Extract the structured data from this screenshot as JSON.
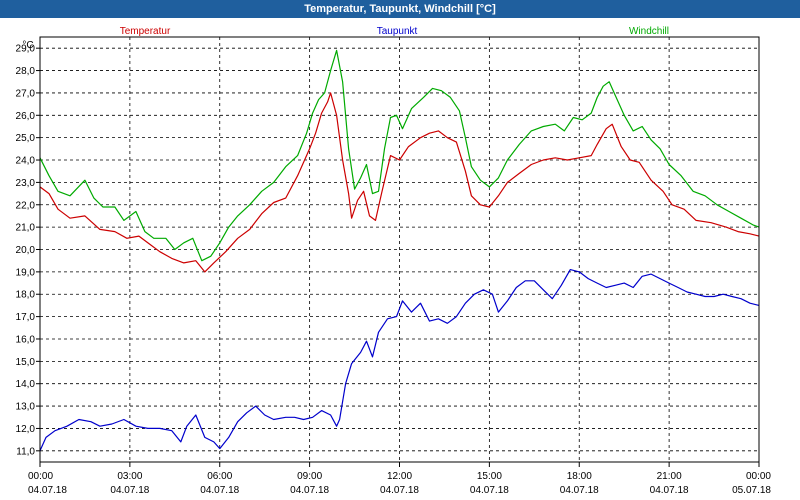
{
  "window": {
    "title": "Temperatur, Taupunkt, Windchill [°C]"
  },
  "chart_data": {
    "type": "line",
    "unit": "°C",
    "ylim": [
      10.5,
      29.5
    ],
    "yticks": [
      "11,0",
      "12,0",
      "13,0",
      "14,0",
      "15,0",
      "16,0",
      "17,0",
      "18,0",
      "19,0",
      "20,0",
      "21,0",
      "22,0",
      "23,0",
      "24,0",
      "25,0",
      "26,0",
      "27,0",
      "28,0",
      "29,0"
    ],
    "xlim": [
      0,
      24
    ],
    "xticks": [
      {
        "time": "00:00",
        "date": "04.07.18"
      },
      {
        "time": "03:00",
        "date": "04.07.18"
      },
      {
        "time": "06:00",
        "date": "04.07.18"
      },
      {
        "time": "09:00",
        "date": "04.07.18"
      },
      {
        "time": "12:00",
        "date": "04.07.18"
      },
      {
        "time": "15:00",
        "date": "04.07.18"
      },
      {
        "time": "18:00",
        "date": "04.07.18"
      },
      {
        "time": "21:00",
        "date": "04.07.18"
      },
      {
        "time": "00:00",
        "date": "05.07.18"
      }
    ],
    "grid": true,
    "series": [
      {
        "name": "Temperatur",
        "color": "#cc0000",
        "points": [
          [
            0,
            22.8
          ],
          [
            0.3,
            22.5
          ],
          [
            0.6,
            21.8
          ],
          [
            1,
            21.4
          ],
          [
            1.5,
            21.5
          ],
          [
            2,
            20.9
          ],
          [
            2.5,
            20.8
          ],
          [
            2.9,
            20.5
          ],
          [
            3.3,
            20.6
          ],
          [
            3.7,
            20.2
          ],
          [
            4,
            19.9
          ],
          [
            4.4,
            19.6
          ],
          [
            4.8,
            19.4
          ],
          [
            5.2,
            19.5
          ],
          [
            5.5,
            19.0
          ],
          [
            5.8,
            19.4
          ],
          [
            6.2,
            19.9
          ],
          [
            6.6,
            20.5
          ],
          [
            7,
            20.9
          ],
          [
            7.4,
            21.6
          ],
          [
            7.8,
            22.1
          ],
          [
            8.2,
            22.3
          ],
          [
            8.6,
            23.3
          ],
          [
            9,
            24.5
          ],
          [
            9.2,
            25.2
          ],
          [
            9.4,
            26.1
          ],
          [
            9.6,
            26.6
          ],
          [
            9.7,
            27.0
          ],
          [
            9.9,
            26.0
          ],
          [
            10.1,
            24.0
          ],
          [
            10.3,
            22.5
          ],
          [
            10.4,
            21.4
          ],
          [
            10.6,
            22.2
          ],
          [
            10.8,
            22.6
          ],
          [
            11,
            21.5
          ],
          [
            11.2,
            21.3
          ],
          [
            11.4,
            22.5
          ],
          [
            11.7,
            24.2
          ],
          [
            12,
            24.0
          ],
          [
            12.3,
            24.6
          ],
          [
            12.7,
            25.0
          ],
          [
            13,
            25.2
          ],
          [
            13.3,
            25.3
          ],
          [
            13.6,
            25.0
          ],
          [
            13.9,
            24.8
          ],
          [
            14.2,
            23.5
          ],
          [
            14.4,
            22.4
          ],
          [
            14.7,
            22.0
          ],
          [
            15,
            21.9
          ],
          [
            15.3,
            22.4
          ],
          [
            15.6,
            23.0
          ],
          [
            16,
            23.4
          ],
          [
            16.4,
            23.8
          ],
          [
            16.8,
            24.0
          ],
          [
            17.2,
            24.1
          ],
          [
            17.6,
            24.0
          ],
          [
            18,
            24.1
          ],
          [
            18.4,
            24.2
          ],
          [
            18.6,
            24.7
          ],
          [
            18.9,
            25.4
          ],
          [
            19.1,
            25.6
          ],
          [
            19.4,
            24.6
          ],
          [
            19.7,
            24.0
          ],
          [
            20,
            23.9
          ],
          [
            20.4,
            23.1
          ],
          [
            20.8,
            22.6
          ],
          [
            21.1,
            22.0
          ],
          [
            21.5,
            21.8
          ],
          [
            21.9,
            21.3
          ],
          [
            22.4,
            21.2
          ],
          [
            22.9,
            21.0
          ],
          [
            23.3,
            20.8
          ],
          [
            23.7,
            20.7
          ],
          [
            24,
            20.6
          ]
        ]
      },
      {
        "name": "Taupunkt",
        "color": "#0000cc",
        "points": [
          [
            0,
            11.0
          ],
          [
            0.2,
            11.6
          ],
          [
            0.5,
            11.9
          ],
          [
            0.9,
            12.1
          ],
          [
            1.3,
            12.4
          ],
          [
            1.7,
            12.3
          ],
          [
            2,
            12.1
          ],
          [
            2.4,
            12.2
          ],
          [
            2.8,
            12.4
          ],
          [
            3.2,
            12.1
          ],
          [
            3.6,
            12.0
          ],
          [
            4,
            12.0
          ],
          [
            4.4,
            11.9
          ],
          [
            4.7,
            11.4
          ],
          [
            4.9,
            12.1
          ],
          [
            5.2,
            12.6
          ],
          [
            5.5,
            11.6
          ],
          [
            5.8,
            11.4
          ],
          [
            6,
            11.1
          ],
          [
            6.3,
            11.6
          ],
          [
            6.6,
            12.3
          ],
          [
            6.9,
            12.7
          ],
          [
            7.2,
            13.0
          ],
          [
            7.5,
            12.6
          ],
          [
            7.8,
            12.4
          ],
          [
            8.2,
            12.5
          ],
          [
            8.5,
            12.5
          ],
          [
            8.8,
            12.4
          ],
          [
            9.1,
            12.5
          ],
          [
            9.4,
            12.8
          ],
          [
            9.7,
            12.6
          ],
          [
            9.9,
            12.1
          ],
          [
            10,
            12.4
          ],
          [
            10.2,
            14.0
          ],
          [
            10.4,
            14.9
          ],
          [
            10.7,
            15.4
          ],
          [
            10.9,
            15.9
          ],
          [
            11.1,
            15.2
          ],
          [
            11.3,
            16.3
          ],
          [
            11.6,
            16.9
          ],
          [
            11.9,
            17.0
          ],
          [
            12.1,
            17.7
          ],
          [
            12.4,
            17.2
          ],
          [
            12.7,
            17.6
          ],
          [
            13,
            16.8
          ],
          [
            13.3,
            16.9
          ],
          [
            13.6,
            16.7
          ],
          [
            13.9,
            17.0
          ],
          [
            14.2,
            17.6
          ],
          [
            14.5,
            18.0
          ],
          [
            14.8,
            18.2
          ],
          [
            15.1,
            18.0
          ],
          [
            15.3,
            17.2
          ],
          [
            15.6,
            17.7
          ],
          [
            15.9,
            18.3
          ],
          [
            16.2,
            18.6
          ],
          [
            16.5,
            18.6
          ],
          [
            16.8,
            18.2
          ],
          [
            17.1,
            17.8
          ],
          [
            17.4,
            18.4
          ],
          [
            17.7,
            19.1
          ],
          [
            18,
            19.0
          ],
          [
            18.3,
            18.7
          ],
          [
            18.6,
            18.5
          ],
          [
            18.9,
            18.3
          ],
          [
            19.2,
            18.4
          ],
          [
            19.5,
            18.5
          ],
          [
            19.8,
            18.3
          ],
          [
            20.1,
            18.8
          ],
          [
            20.4,
            18.9
          ],
          [
            20.7,
            18.7
          ],
          [
            21,
            18.5
          ],
          [
            21.3,
            18.3
          ],
          [
            21.6,
            18.1
          ],
          [
            21.9,
            18.0
          ],
          [
            22.2,
            17.9
          ],
          [
            22.5,
            17.9
          ],
          [
            22.8,
            18.0
          ],
          [
            23.1,
            17.9
          ],
          [
            23.4,
            17.8
          ],
          [
            23.7,
            17.6
          ],
          [
            24,
            17.5
          ]
        ]
      },
      {
        "name": "Windchill",
        "color": "#00aa00",
        "points": [
          [
            0,
            24.1
          ],
          [
            0.3,
            23.3
          ],
          [
            0.6,
            22.6
          ],
          [
            1,
            22.4
          ],
          [
            1.5,
            23.1
          ],
          [
            1.8,
            22.3
          ],
          [
            2.1,
            21.9
          ],
          [
            2.5,
            21.9
          ],
          [
            2.8,
            21.3
          ],
          [
            3.2,
            21.7
          ],
          [
            3.5,
            20.8
          ],
          [
            3.8,
            20.5
          ],
          [
            4.2,
            20.5
          ],
          [
            4.5,
            20.0
          ],
          [
            4.8,
            20.3
          ],
          [
            5.1,
            20.5
          ],
          [
            5.4,
            19.5
          ],
          [
            5.7,
            19.7
          ],
          [
            6,
            20.3
          ],
          [
            6.3,
            21.0
          ],
          [
            6.6,
            21.5
          ],
          [
            7,
            22.0
          ],
          [
            7.4,
            22.6
          ],
          [
            7.8,
            23.0
          ],
          [
            8.2,
            23.7
          ],
          [
            8.6,
            24.2
          ],
          [
            8.9,
            25.2
          ],
          [
            9.1,
            26.1
          ],
          [
            9.3,
            26.7
          ],
          [
            9.5,
            27.0
          ],
          [
            9.7,
            28.0
          ],
          [
            9.9,
            28.9
          ],
          [
            10.1,
            27.5
          ],
          [
            10.3,
            24.5
          ],
          [
            10.5,
            22.7
          ],
          [
            10.7,
            23.2
          ],
          [
            10.9,
            23.8
          ],
          [
            11.1,
            22.5
          ],
          [
            11.3,
            22.6
          ],
          [
            11.5,
            24.5
          ],
          [
            11.7,
            25.9
          ],
          [
            11.9,
            26.0
          ],
          [
            12.1,
            25.4
          ],
          [
            12.4,
            26.3
          ],
          [
            12.8,
            26.8
          ],
          [
            13.1,
            27.2
          ],
          [
            13.4,
            27.1
          ],
          [
            13.7,
            26.8
          ],
          [
            14,
            26.2
          ],
          [
            14.2,
            25.0
          ],
          [
            14.4,
            23.7
          ],
          [
            14.7,
            23.1
          ],
          [
            15,
            22.8
          ],
          [
            15.3,
            23.2
          ],
          [
            15.6,
            24.0
          ],
          [
            16,
            24.7
          ],
          [
            16.4,
            25.3
          ],
          [
            16.8,
            25.5
          ],
          [
            17.2,
            25.6
          ],
          [
            17.5,
            25.3
          ],
          [
            17.8,
            25.9
          ],
          [
            18.1,
            25.8
          ],
          [
            18.4,
            26.1
          ],
          [
            18.6,
            26.8
          ],
          [
            18.8,
            27.3
          ],
          [
            19,
            27.5
          ],
          [
            19.2,
            26.9
          ],
          [
            19.5,
            26.0
          ],
          [
            19.8,
            25.3
          ],
          [
            20.1,
            25.5
          ],
          [
            20.4,
            24.9
          ],
          [
            20.7,
            24.5
          ],
          [
            21,
            23.8
          ],
          [
            21.4,
            23.3
          ],
          [
            21.8,
            22.6
          ],
          [
            22.2,
            22.4
          ],
          [
            22.6,
            22.0
          ],
          [
            23,
            21.7
          ],
          [
            23.4,
            21.4
          ],
          [
            23.8,
            21.1
          ],
          [
            24,
            21.0
          ]
        ]
      }
    ]
  }
}
